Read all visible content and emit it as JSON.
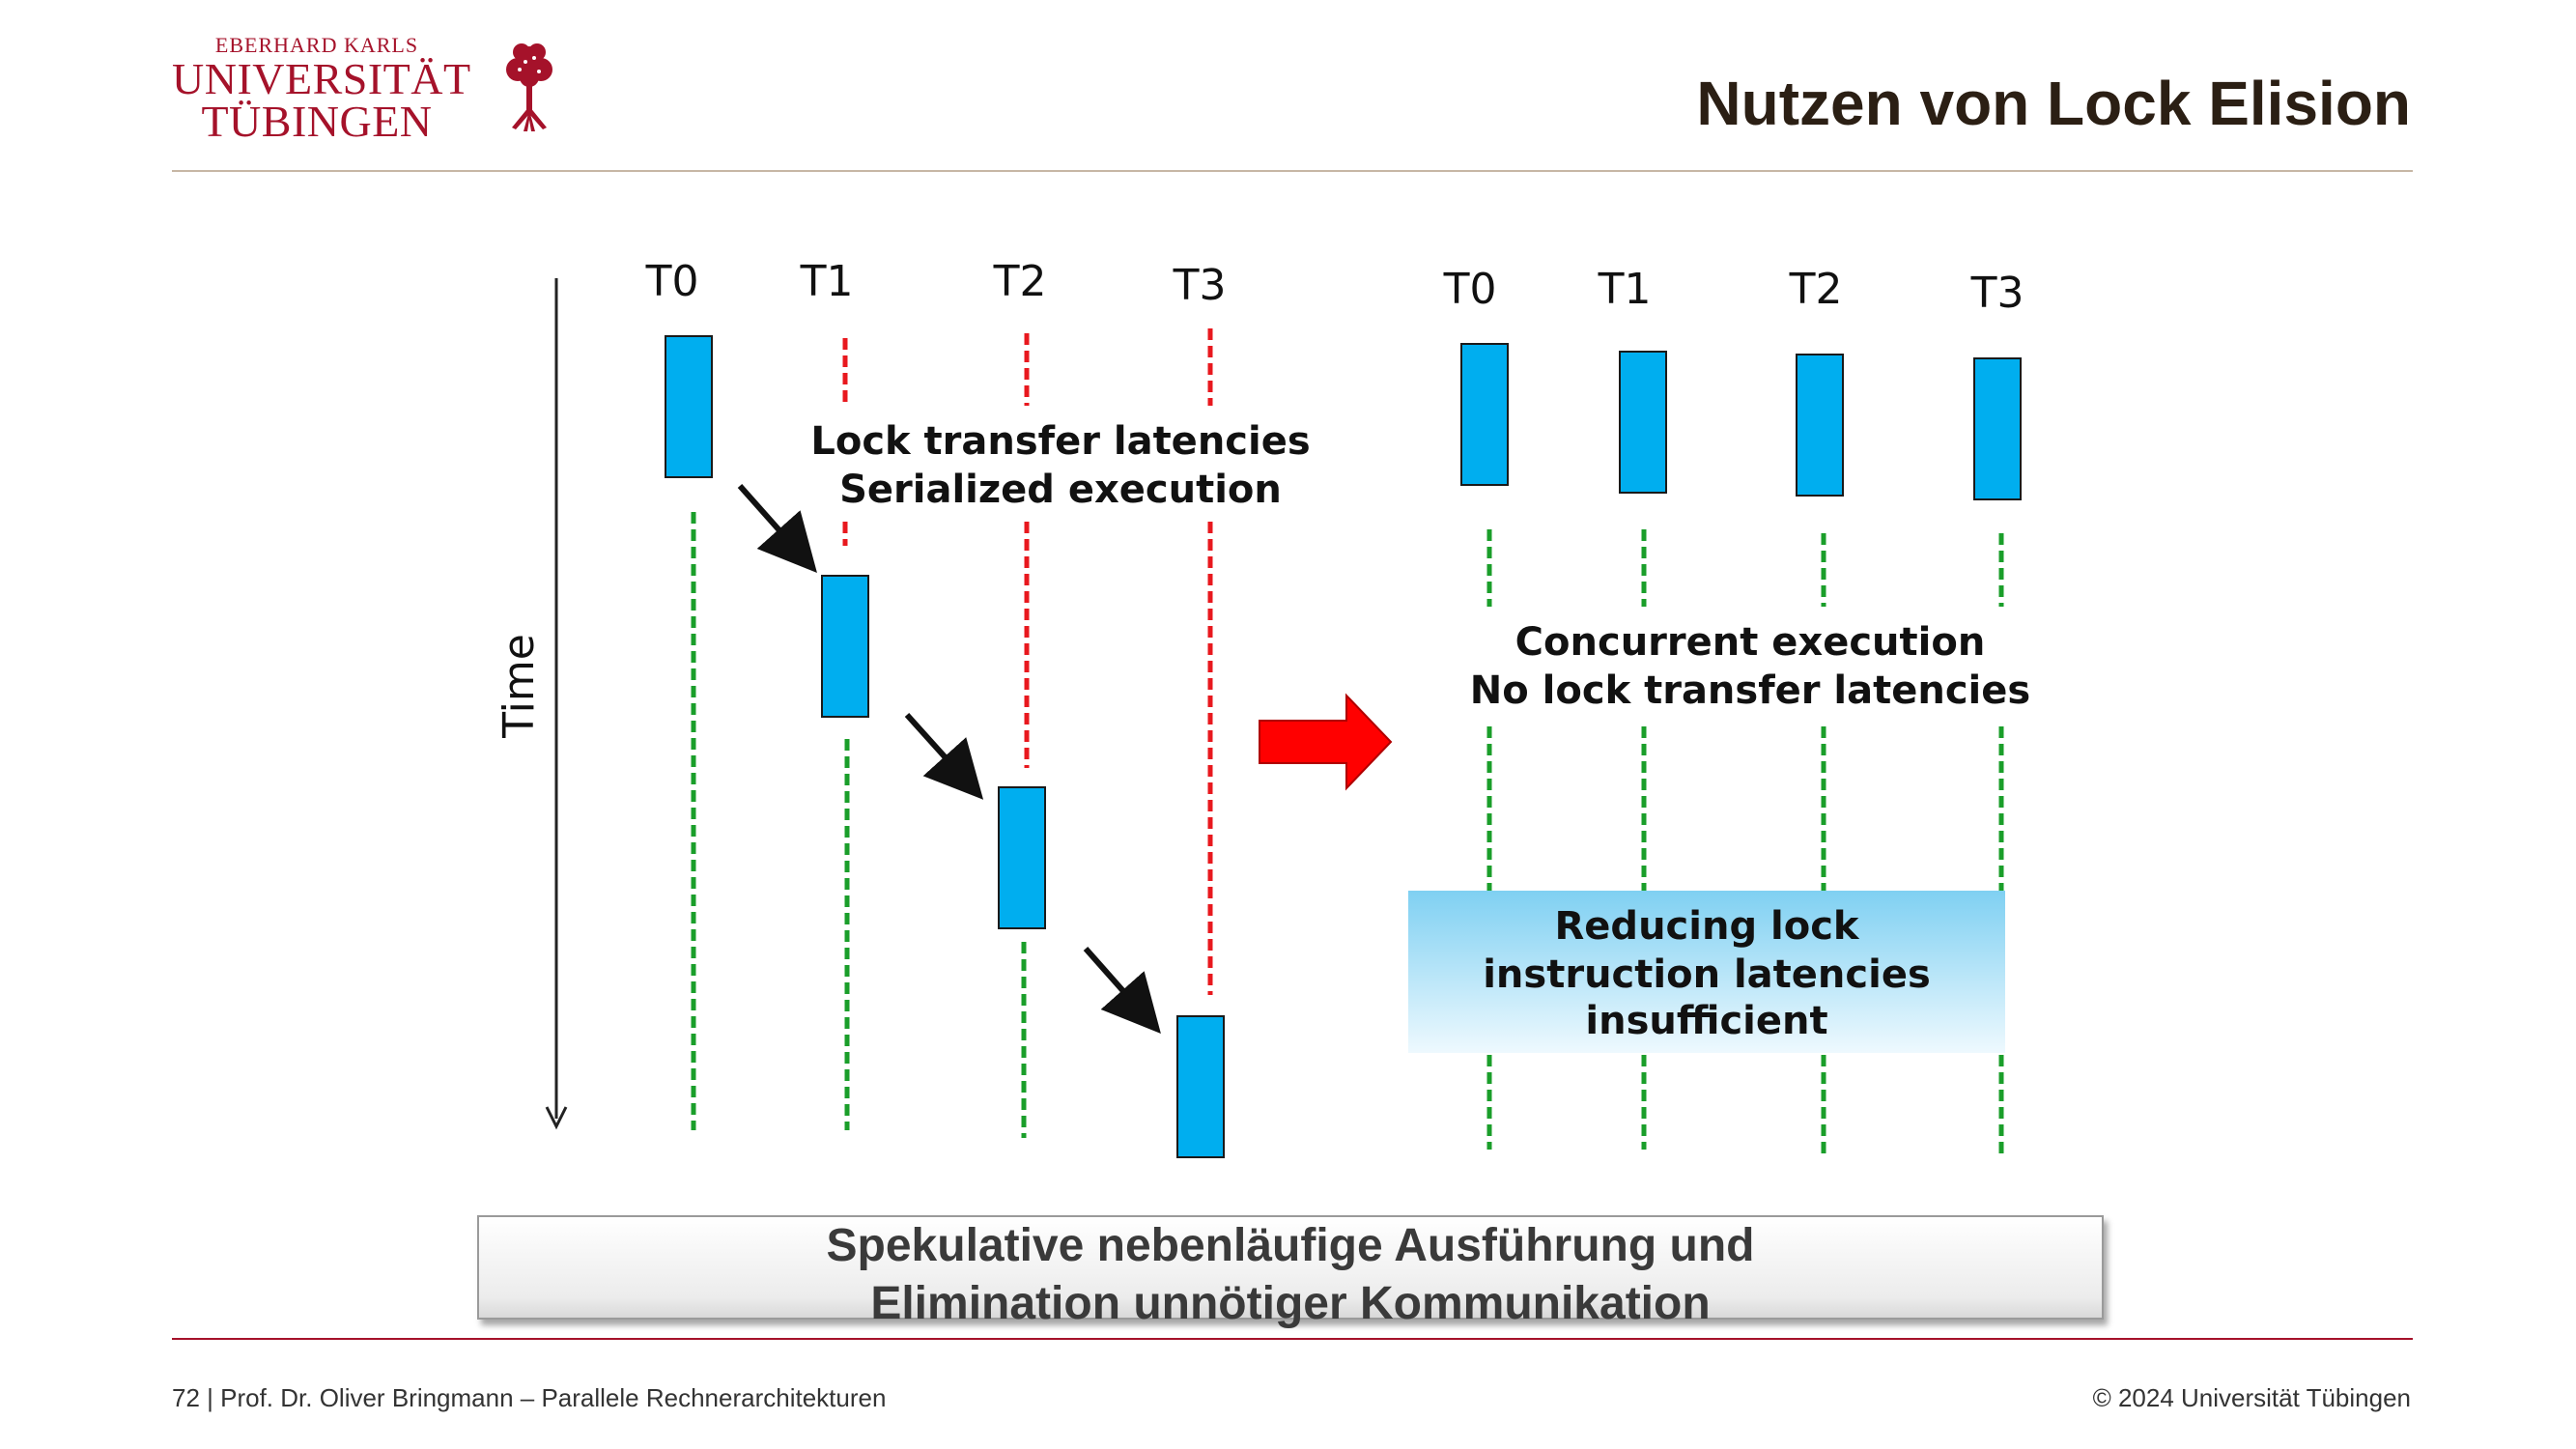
{
  "header": {
    "logo_line1": "EBERHARD KARLS",
    "logo_line2": "UNIVERSITÄT",
    "logo_line3": "TÜBINGEN",
    "title": "Nutzen von Lock Elision"
  },
  "diagram": {
    "time_label": "Time",
    "left": {
      "threads": [
        "T0",
        "T1",
        "T2",
        "T3"
      ],
      "caption_line1": "Lock transfer latencies",
      "caption_line2": "Serialized execution"
    },
    "right": {
      "threads": [
        "T0",
        "T1",
        "T2",
        "T3"
      ],
      "caption_line1": "Concurrent execution",
      "caption_line2": "No lock transfer latencies",
      "box_line1": "Reducing lock",
      "box_line2": "instruction latencies",
      "box_line3": "insufficient"
    },
    "colors": {
      "block": "#00aeef",
      "wait_line": "#e8181e",
      "run_line": "#1a9e2a",
      "arrow": "#e8181e",
      "box_top": "#7fd0f2"
    }
  },
  "callout": {
    "line1": "Spekulative nebenläufige Ausführung und",
    "line2": "Elimination unnötiger Kommunikation"
  },
  "footer": {
    "left": "72 | Prof. Dr. Oliver Bringmann – Parallele Rechnerarchitekturen",
    "right": "© 2024 Universität Tübingen"
  }
}
